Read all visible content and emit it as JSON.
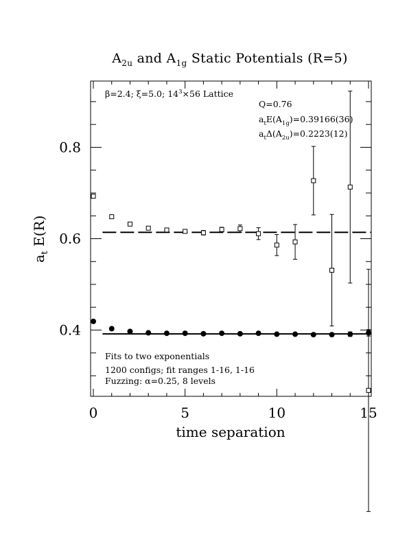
{
  "chart_data": {
    "type": "scatter",
    "title": {
      "base1": "A",
      "sub1": "2u",
      "mid": " and A",
      "sub2": "1g",
      "rest": " Static Potentials (R=5)"
    },
    "xlabel": "time separation",
    "ylabel": {
      "base": "a",
      "sub": "t",
      "rest": " E(R)"
    },
    "xlim": [
      -0.15,
      15.15
    ],
    "ylim": [
      0.255,
      0.945
    ],
    "x_ticks": [
      0,
      5,
      10,
      15
    ],
    "x_tick_labels": [
      "0",
      "5",
      "10",
      "15"
    ],
    "y_ticks": [
      0.4,
      0.6,
      0.8
    ],
    "y_tick_labels": [
      "0.4",
      "0.6",
      "0.8"
    ],
    "series": [
      {
        "marker": "open-square",
        "points": [
          {
            "x": 0,
            "y": 0.693,
            "err": 0.003
          },
          {
            "x": 1,
            "y": 0.648,
            "err": 0.003
          },
          {
            "x": 2,
            "y": 0.632,
            "err": 0.003
          },
          {
            "x": 3,
            "y": 0.623,
            "err": 0.004
          },
          {
            "x": 4,
            "y": 0.619,
            "err": 0.004
          },
          {
            "x": 5,
            "y": 0.616,
            "err": 0.004
          },
          {
            "x": 6,
            "y": 0.613,
            "err": 0.005
          },
          {
            "x": 7,
            "y": 0.62,
            "err": 0.005
          },
          {
            "x": 8,
            "y": 0.622,
            "err": 0.008
          },
          {
            "x": 9,
            "y": 0.611,
            "err": 0.013
          },
          {
            "x": 10,
            "y": 0.586,
            "err": 0.023
          },
          {
            "x": 11,
            "y": 0.593,
            "err": 0.038
          },
          {
            "x": 12,
            "y": 0.727,
            "err": 0.075
          },
          {
            "x": 13,
            "y": 0.531,
            "err": 0.122
          },
          {
            "x": 14,
            "y": 0.713,
            "err": 0.21
          },
          {
            "x": 15,
            "y": 0.268,
            "err": 0.265
          }
        ]
      },
      {
        "marker": "filled-circle",
        "points": [
          {
            "x": 0,
            "y": 0.419,
            "err": 0.002
          },
          {
            "x": 1,
            "y": 0.403,
            "err": 0.002
          },
          {
            "x": 2,
            "y": 0.397,
            "err": 0.002
          },
          {
            "x": 3,
            "y": 0.394,
            "err": 0.002
          },
          {
            "x": 4,
            "y": 0.393,
            "err": 0.002
          },
          {
            "x": 5,
            "y": 0.393,
            "err": 0.002
          },
          {
            "x": 6,
            "y": 0.392,
            "err": 0.002
          },
          {
            "x": 7,
            "y": 0.393,
            "err": 0.002
          },
          {
            "x": 8,
            "y": 0.392,
            "err": 0.002
          },
          {
            "x": 9,
            "y": 0.393,
            "err": 0.003
          },
          {
            "x": 10,
            "y": 0.391,
            "err": 0.003
          },
          {
            "x": 11,
            "y": 0.391,
            "err": 0.003
          },
          {
            "x": 12,
            "y": 0.39,
            "err": 0.004
          },
          {
            "x": 13,
            "y": 0.39,
            "err": 0.004
          },
          {
            "x": 14,
            "y": 0.391,
            "err": 0.005
          },
          {
            "x": 15,
            "y": 0.394,
            "err": 0.007
          }
        ]
      }
    ],
    "fit_lines": [
      {
        "y": 0.6139,
        "x_from": 0.5,
        "x_to": 15.15,
        "style": "dashed"
      },
      {
        "y": 0.39166,
        "x_from": 0.5,
        "x_to": 15.15,
        "style": "solid"
      }
    ],
    "annotations": {
      "lattice": {
        "beta": "β=2.4; ",
        "xi": "ξ=5.0; ",
        "lat_a": "14",
        "lat_sup": "3",
        "lat_b": "×56 Lattice"
      },
      "q_value": "Q=0.76",
      "energy": {
        "pre": "a",
        "s1": "t",
        "mid": "E(A",
        "s2": "1g",
        "post": ")=0.39166(36)"
      },
      "delta": {
        "pre": "a",
        "s1": "t",
        "mid": "Δ(A",
        "s2": "2u",
        "post": ")=0.2223(12)"
      },
      "fit_note_1": "Fits to two exponentials",
      "fit_note_2": "1200 configs; fit ranges 1-16, 1-16",
      "fit_note_3": "Fuzzing: α=0.25, 8 levels"
    }
  }
}
